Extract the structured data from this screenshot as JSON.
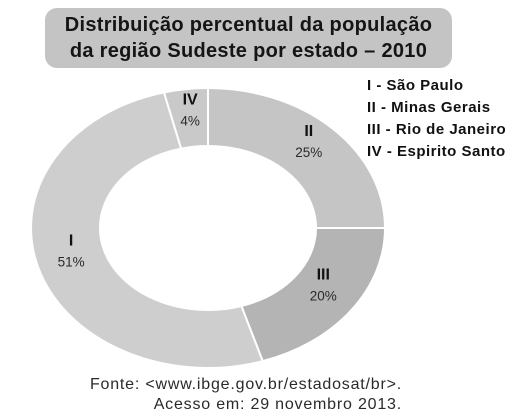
{
  "chart_data": {
    "type": "pie",
    "donut": true,
    "title": [
      "Distribuição percentual da população",
      "da região Sudeste por estado – 2010"
    ],
    "categories": [
      "II",
      "III",
      "I",
      "IV"
    ],
    "values": [
      25,
      20,
      51,
      4
    ],
    "value_labels": [
      "25%",
      "20%",
      "51%",
      "4%"
    ],
    "colors": [
      "#c5c5c5",
      "#b4b4b4",
      "#cecece",
      "#c9c9c9"
    ],
    "legend": [
      "I - São Paulo",
      "II - Minas Gerais",
      "III - Rio de Janeiro",
      "IV - Espirito Santo"
    ],
    "legend_position": "top-right",
    "source": [
      "Fonte: <www.ibge.gov.br/estadosat/br>.",
      "Acesso em: 29 novembro 2013."
    ]
  }
}
